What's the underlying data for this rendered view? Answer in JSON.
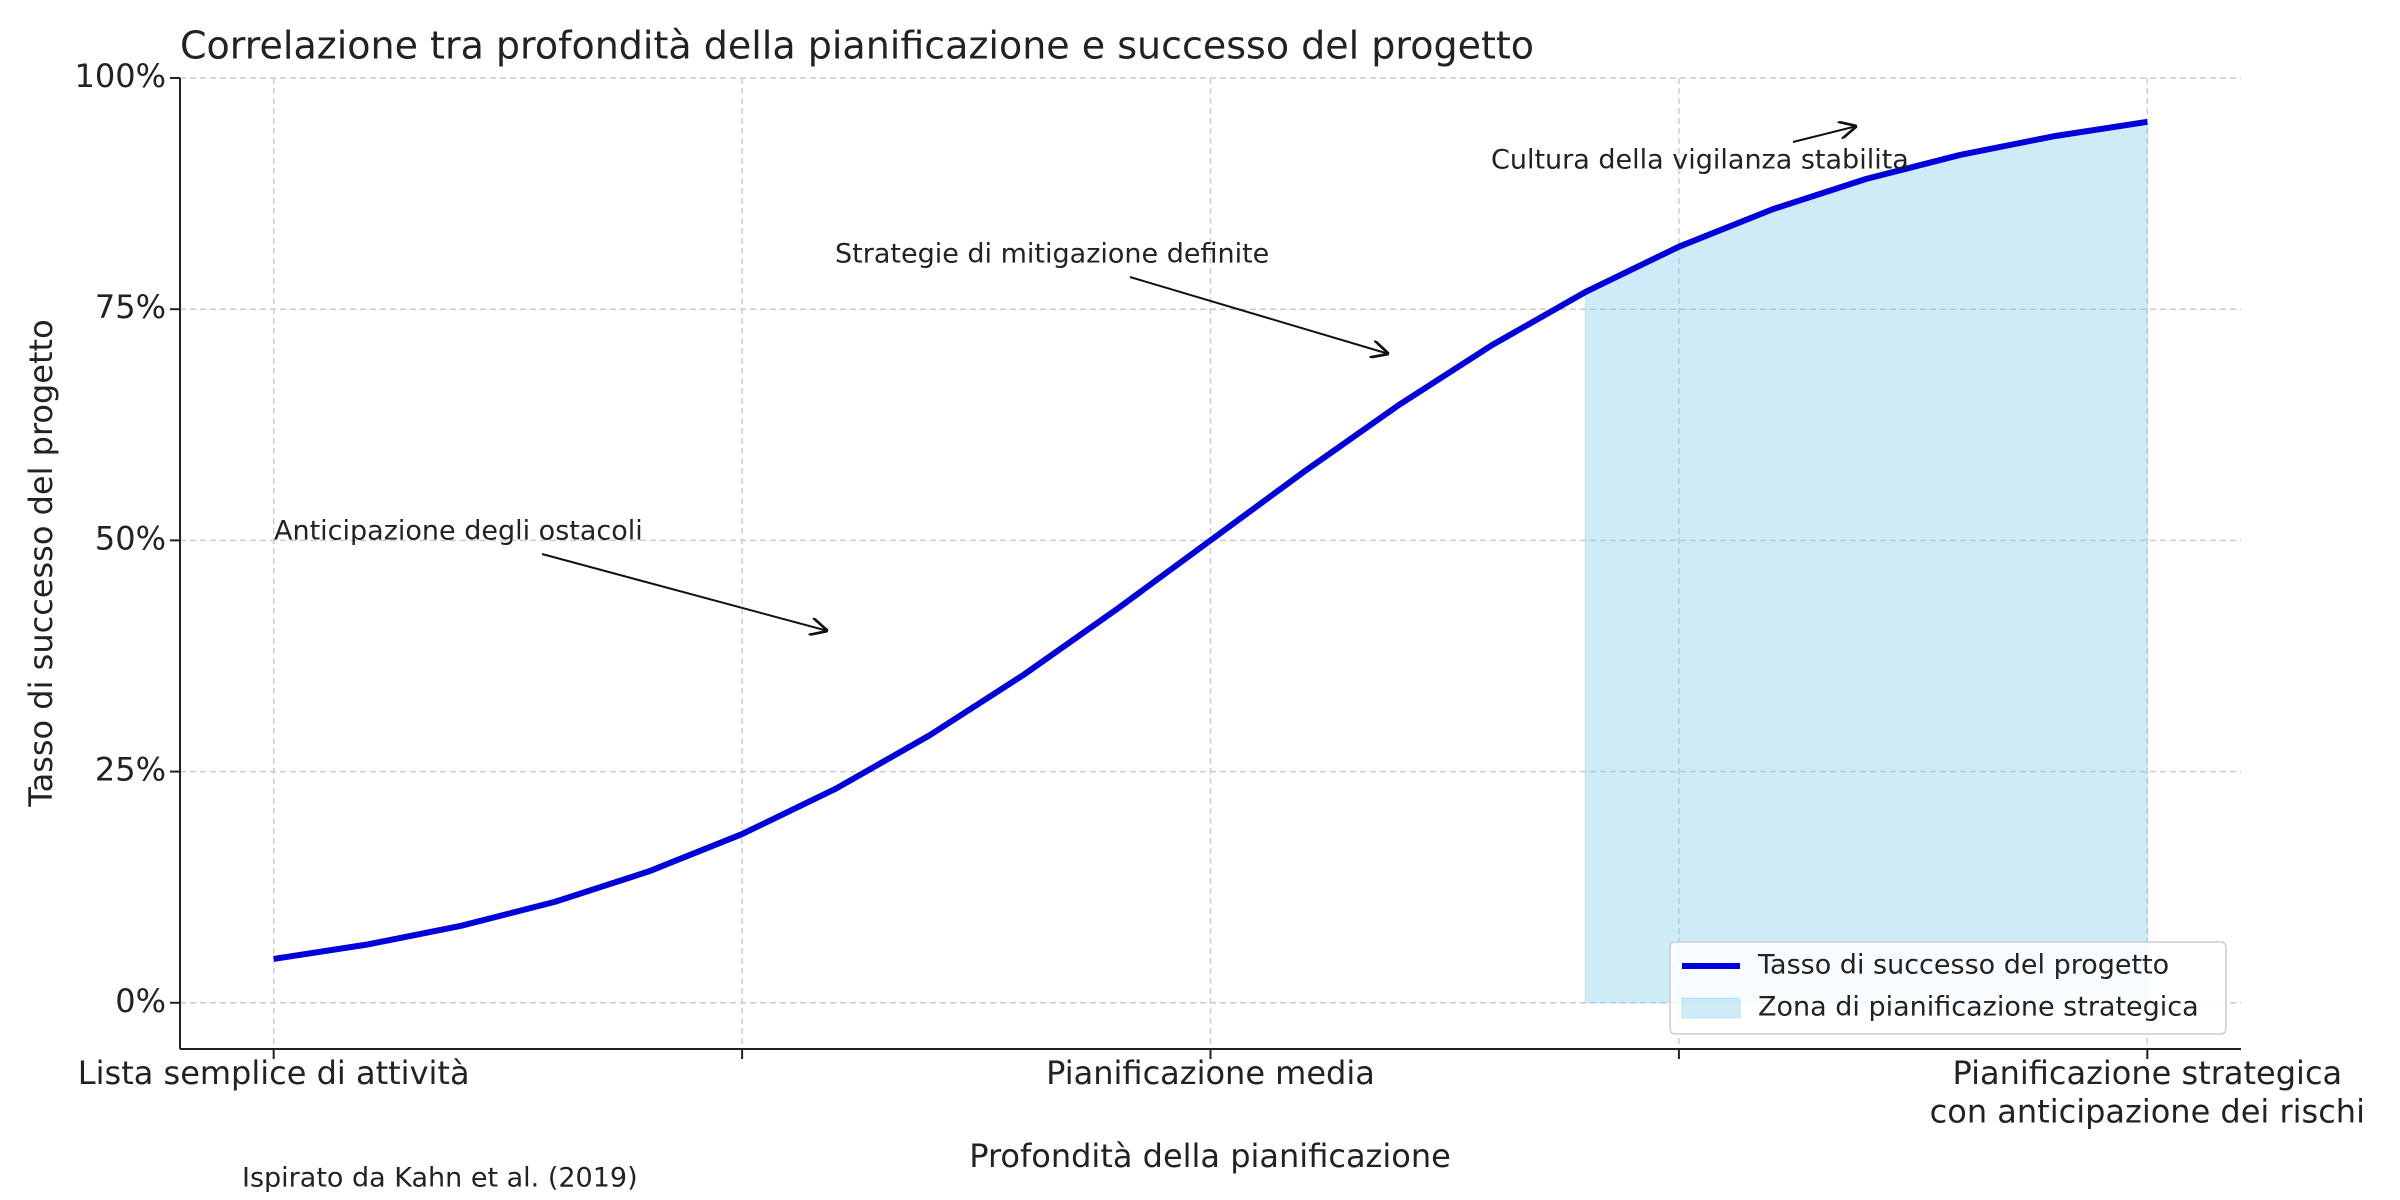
{
  "chart_data": {
    "type": "line",
    "title": "Correlazione tra profondità della pianificazione e successo del progetto",
    "xlabel": "Profondità della pianificazione",
    "ylabel": "Tasso di successo del progetto",
    "source": "Ispirato da Kahn et al. (2019)",
    "annotations": [
      "Anticipazione degli ostacoli",
      "Strategie di mitigazione definite",
      "Cultura della vigilanza stabilita"
    ],
    "x": [
      0,
      0.05,
      0.1,
      0.15,
      0.2,
      0.25,
      0.3,
      0.35,
      0.4,
      0.45,
      0.5,
      0.55,
      0.6,
      0.65,
      0.7,
      0.75,
      0.8,
      0.85,
      0.9,
      0.95,
      1
    ],
    "series": [
      {
        "name": "Tasso di successo del progetto",
        "type": "line",
        "color": "#0000dd",
        "values": [
          4.74,
          6.3,
          8.32,
          10.91,
          14.19,
          18.24,
          23.15,
          28.91,
          35.43,
          42.56,
          50,
          57.44,
          64.57,
          71.09,
          76.85,
          81.76,
          85.81,
          89.09,
          91.68,
          93.7,
          95.26
        ]
      },
      {
        "name": "Zona di pianificazione strategica",
        "type": "area",
        "color": "#87ceeb",
        "alpha": 0.4,
        "x": [
          0.7,
          0.75,
          0.8,
          0.85,
          0.9,
          0.95,
          1
        ],
        "values": [
          76.85,
          81.76,
          85.81,
          89.09,
          91.68,
          93.7,
          95.26
        ]
      }
    ],
    "xlim": [
      -0.05,
      1.05
    ],
    "xticks": [
      {
        "value": 0,
        "label": "Lista semplice di attività"
      },
      {
        "value": 0.25,
        "label": null
      },
      {
        "value": 0.5,
        "label": "Pianificazione media"
      },
      {
        "value": 0.75,
        "label": null
      },
      {
        "value": 1,
        "label": "Pianificazione strategica\ncon anticipazione dei rischi"
      }
    ],
    "ylim": [
      -5,
      100
    ],
    "yticks": [
      {
        "value": 0,
        "label": "0%"
      },
      {
        "value": 25,
        "label": "25%"
      },
      {
        "value": 50,
        "label": "50%"
      },
      {
        "value": 75,
        "label": "75%"
      },
      {
        "value": 100,
        "label": "100%"
      }
    ],
    "grid": true,
    "legend": "lower right"
  }
}
